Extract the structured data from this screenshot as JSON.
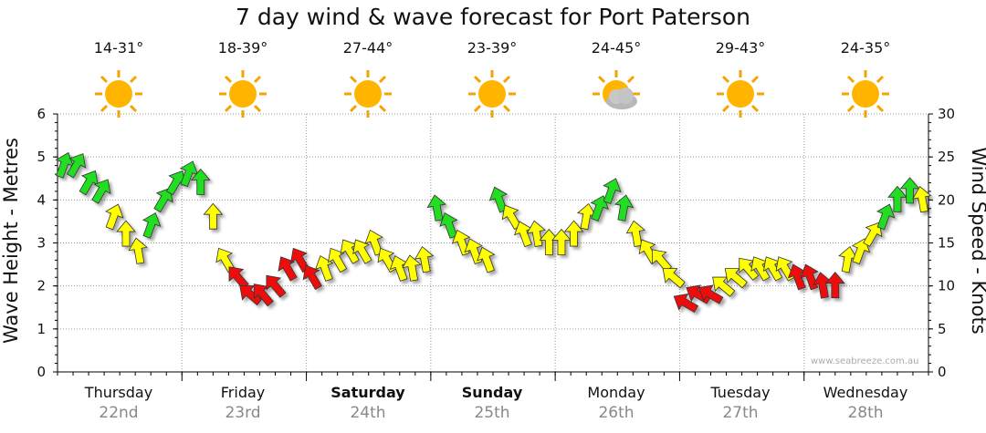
{
  "title": "7 day wind & wave forecast for Port Paterson",
  "ylabel_left": "Wave Height - Metres",
  "ylabel_right": "Wind Speed - Knots",
  "watermark": "www.seabreeze.com.au",
  "days": [
    {
      "day": "Thursday",
      "date": "22nd",
      "bold": false,
      "temp": "14-31°",
      "icon": "sun-icon"
    },
    {
      "day": "Friday",
      "date": "23rd",
      "bold": false,
      "temp": "18-39°",
      "icon": "sun-icon"
    },
    {
      "day": "Saturday",
      "date": "24th",
      "bold": true,
      "temp": "27-44°",
      "icon": "sun-icon"
    },
    {
      "day": "Sunday",
      "date": "25th",
      "bold": true,
      "temp": "23-39°",
      "icon": "sun-icon"
    },
    {
      "day": "Monday",
      "date": "26th",
      "bold": false,
      "temp": "24-45°",
      "icon": "sun-cloud-icon"
    },
    {
      "day": "Tuesday",
      "date": "27th",
      "bold": false,
      "temp": "29-43°",
      "icon": "sun-icon"
    },
    {
      "day": "Wednesday",
      "date": "28th",
      "bold": false,
      "temp": "24-35°",
      "icon": "sun-icon"
    }
  ],
  "colors": {
    "green": "#22dd22",
    "yellow": "#ffff00",
    "red": "#ee1111",
    "grid": "#9a9a9a"
  },
  "chart_data": {
    "type": "line",
    "title": "7 day wind & wave forecast for Port Paterson",
    "ylabel": "Wave Height - Metres",
    "y2label": "Wind Speed - Knots",
    "ylim": [
      0,
      6
    ],
    "y2lim": [
      0,
      30
    ],
    "left_ticks": [
      "0",
      "1",
      "2",
      "3",
      "4",
      "5",
      "6"
    ],
    "right_ticks": [
      "0",
      "5",
      "10",
      "15",
      "20",
      "25",
      "30"
    ],
    "categories": [
      "Thursday 22nd",
      "Friday 23rd",
      "Saturday 24th",
      "Sunday 25th",
      "Monday 26th",
      "Tuesday 27th",
      "Wednesday 28th"
    ],
    "series": [
      {
        "x": [
          0.0,
          0.1,
          0.2,
          0.3,
          0.4,
          0.5,
          0.6,
          0.7,
          0.8,
          0.9,
          1.0,
          1.1,
          1.2,
          1.3,
          1.4,
          1.5,
          1.6,
          1.7,
          1.8,
          1.9,
          2.0,
          2.1,
          2.2,
          2.3,
          2.4,
          2.5,
          2.6,
          2.7,
          2.8,
          2.9,
          3.0,
          3.1,
          3.2,
          3.3,
          3.4,
          3.5,
          3.6,
          3.7,
          3.8,
          3.9,
          4.0,
          4.1,
          4.2,
          4.3,
          4.4,
          4.5,
          4.6,
          4.7,
          4.8,
          4.9,
          5.0,
          5.1,
          5.2,
          5.3,
          5.4,
          5.5,
          5.6,
          5.7,
          5.8,
          5.9,
          6.0,
          6.1,
          6.2,
          6.3,
          6.4,
          6.5,
          6.6,
          6.7,
          6.8,
          6.9
        ],
        "wind_knots": [
          24,
          24,
          22,
          21,
          18,
          16,
          14,
          17,
          20,
          22,
          23,
          22,
          18,
          13,
          11,
          9,
          9,
          10,
          12,
          13,
          11,
          12,
          13,
          14,
          14,
          15,
          13,
          12,
          12,
          13,
          19,
          17,
          15,
          14,
          13,
          20,
          18,
          16,
          16,
          15,
          15,
          16,
          18,
          19,
          21,
          19,
          16,
          14,
          13,
          11,
          8,
          9,
          9,
          10,
          11,
          12,
          12,
          12,
          12,
          11,
          11,
          10,
          10,
          13,
          14,
          16,
          18,
          20,
          21,
          20
        ],
        "wind_dir_deg": [
          200,
          210,
          210,
          210,
          200,
          180,
          170,
          200,
          210,
          210,
          200,
          180,
          180,
          150,
          140,
          130,
          140,
          140,
          150,
          150,
          150,
          160,
          150,
          150,
          150,
          160,
          150,
          160,
          170,
          170,
          170,
          160,
          160,
          160,
          160,
          160,
          150,
          160,
          170,
          180,
          180,
          180,
          190,
          200,
          200,
          190,
          170,
          150,
          140,
          130,
          120,
          120,
          120,
          130,
          130,
          140,
          150,
          150,
          150,
          160,
          160,
          170,
          180,
          190,
          200,
          210,
          200,
          180,
          180,
          170
        ],
        "color": [
          "green",
          "green",
          "green",
          "green",
          "yellow",
          "yellow",
          "yellow",
          "green",
          "green",
          "green",
          "green",
          "green",
          "yellow",
          "yellow",
          "red",
          "red",
          "red",
          "red",
          "red",
          "red",
          "red",
          "yellow",
          "yellow",
          "yellow",
          "yellow",
          "yellow",
          "yellow",
          "yellow",
          "yellow",
          "yellow",
          "green",
          "green",
          "yellow",
          "yellow",
          "yellow",
          "green",
          "yellow",
          "yellow",
          "yellow",
          "yellow",
          "yellow",
          "yellow",
          "yellow",
          "green",
          "green",
          "green",
          "yellow",
          "yellow",
          "yellow",
          "yellow",
          "red",
          "red",
          "red",
          "yellow",
          "yellow",
          "yellow",
          "yellow",
          "yellow",
          "yellow",
          "red",
          "red",
          "red",
          "red",
          "yellow",
          "yellow",
          "yellow",
          "green",
          "green",
          "green",
          "yellow"
        ]
      }
    ],
    "grid": true
  }
}
